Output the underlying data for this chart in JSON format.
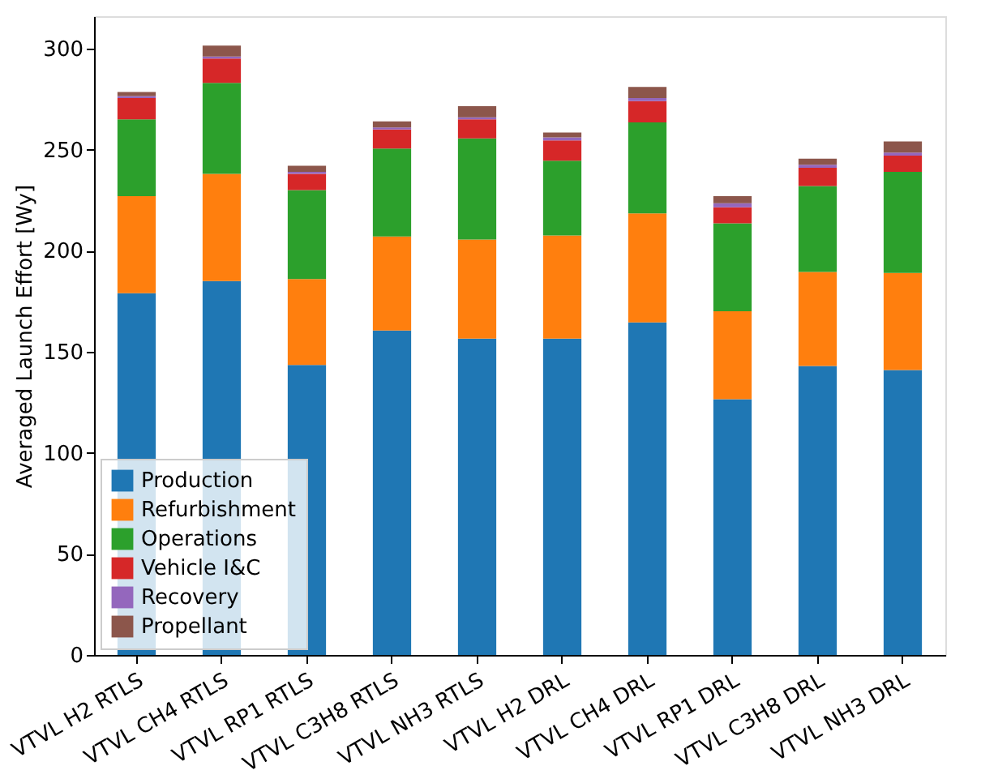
{
  "chart_data": {
    "type": "bar",
    "stacked": true,
    "categories": [
      "VTVL H2 RTLS",
      "VTVL CH4 RTLS",
      "VTVL RP1 RTLS",
      "VTVL C3H8 RTLS",
      "VTVL NH3 RTLS",
      "VTVL H2 DRL",
      "VTVL CH4 DRL",
      "VTVL RP1 DRL",
      "VTVL C3H8 DRL",
      "VTVL NH3 DRL"
    ],
    "ylabel": "Averaged Launch Effort [Wy]",
    "ylim": [
      0,
      316
    ],
    "yticks": [
      0,
      50,
      100,
      150,
      200,
      250,
      300
    ],
    "grid": false,
    "legend": "bottom left",
    "series": [
      {
        "name": "Production",
        "color": "#1f77b4",
        "values": [
          179,
          185,
          143.5,
          160.5,
          156.5,
          156.5,
          164.5,
          126.5,
          143,
          141
        ]
      },
      {
        "name": "Refurbishment",
        "color": "#ff7f0e",
        "values": [
          48,
          53,
          42.5,
          46.5,
          49,
          51,
          54,
          43.5,
          46.5,
          48
        ]
      },
      {
        "name": "Operations",
        "color": "#2ca02c",
        "values": [
          38,
          45,
          44,
          43.5,
          50,
          37,
          45,
          43.5,
          42.5,
          50
        ]
      },
      {
        "name": "Vehicle I&C",
        "color": "#d62728",
        "values": [
          10.5,
          12,
          8,
          9.5,
          9.5,
          10,
          10.5,
          8,
          9,
          8
        ]
      },
      {
        "name": "Recovery",
        "color": "#9467bd",
        "values": [
          1,
          1,
          1,
          1,
          1,
          1.5,
          1.5,
          2,
          1.5,
          1.5
        ]
      },
      {
        "name": "Propellant",
        "color": "#8c564b",
        "values": [
          2,
          5.5,
          3,
          3,
          5.5,
          2.5,
          5.5,
          3.5,
          3,
          5.5
        ]
      }
    ]
  }
}
